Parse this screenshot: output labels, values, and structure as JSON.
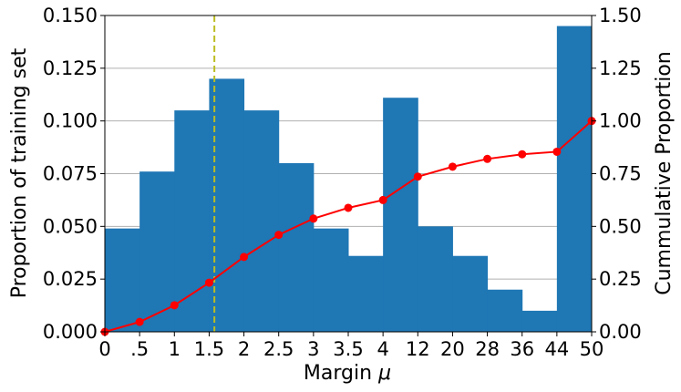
{
  "chart_data": {
    "type": "bar",
    "title": "",
    "xlabel": "Margin",
    "xlabel_symbol": "μ",
    "ylabel_left": "Proportion of training set",
    "ylabel_right": "Cummulative Proportion",
    "x_tick_labels": [
      "0",
      ".5",
      "1",
      "1.5",
      "2",
      "2.5",
      "3",
      "3.5",
      "4",
      "12",
      "20",
      "28",
      "36",
      "44",
      "50"
    ],
    "y_left_ticks": [
      "0.000",
      "0.025",
      "0.050",
      "0.075",
      "0.100",
      "0.125",
      "0.150"
    ],
    "y_right_ticks": [
      "0.00",
      "0.25",
      "0.50",
      "0.75",
      "1.00",
      "1.25",
      "1.50"
    ],
    "ylim_left": [
      0,
      0.15
    ],
    "ylim_right": [
      0,
      1.5
    ],
    "grid": "horizontal",
    "threshold_line": {
      "x_tick_position": 3.15,
      "color": "#bcbd22",
      "style": "dashed"
    },
    "series": [
      {
        "kind": "bar",
        "axis": "left",
        "color": "#1f77b4",
        "values": [
          0.049,
          0.076,
          0.105,
          0.12,
          0.105,
          0.08,
          0.049,
          0.036,
          0.111,
          0.05,
          0.036,
          0.02,
          0.01,
          0.145
        ]
      },
      {
        "kind": "line",
        "axis": "right",
        "color": "#ff0000",
        "values": [
          0.0,
          0.047,
          0.126,
          0.233,
          0.355,
          0.46,
          0.537,
          0.588,
          0.625,
          0.736,
          0.783,
          0.82,
          0.842,
          0.854,
          1.0
        ]
      }
    ]
  }
}
